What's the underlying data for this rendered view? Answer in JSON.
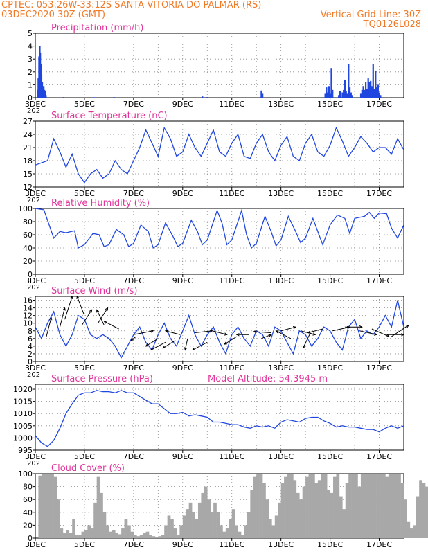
{
  "header": {
    "line1": "CPTEC:   053:26W-33:12S   SANTA VITORIA DO PALMAR (RS)",
    "line2_left": "03DEC2020 30Z (GMT)",
    "line2_right": "Vertical Grid Line: 30Z",
    "line3_right": "TQ0126L028"
  },
  "colors": {
    "header": "#f07a28",
    "title": "#e0339a",
    "line": "#2046e0",
    "cloud": "#a8a8a8",
    "axis": "#000000"
  },
  "chart_data": [
    {
      "type": "bar",
      "title": "Precipitation (mm/h)",
      "yticks": [
        0,
        1,
        2,
        3,
        4,
        5
      ],
      "ylim": [
        0,
        5
      ],
      "xticks": [
        "3DEC",
        "5DEC",
        "7DEC",
        "9DEC",
        "11DEC",
        "13DEC",
        "15DEC",
        "17DEC"
      ],
      "x_overflow_label": "202",
      "xlim": [
        0,
        15
      ],
      "values": [
        [
          0.1,
          0.6
        ],
        [
          0.12,
          1.5
        ],
        [
          0.15,
          3.2
        ],
        [
          0.18,
          4.0
        ],
        [
          0.2,
          3.5
        ],
        [
          0.23,
          2.6
        ],
        [
          0.25,
          1.8
        ],
        [
          0.28,
          1.2
        ],
        [
          0.31,
          0.8
        ],
        [
          0.34,
          0.9
        ],
        [
          0.37,
          0.6
        ],
        [
          0.4,
          0.5
        ],
        [
          0.43,
          0.2
        ],
        [
          1.15,
          0.05
        ],
        [
          2.4,
          0.04
        ],
        [
          3.2,
          0.05
        ],
        [
          6.8,
          0.1
        ],
        [
          7.0,
          0.05
        ],
        [
          9.2,
          0.55
        ],
        [
          9.25,
          0.3
        ],
        [
          11.8,
          0.3
        ],
        [
          11.85,
          0.8
        ],
        [
          11.9,
          0.4
        ],
        [
          11.95,
          0.9
        ],
        [
          12.0,
          0.3
        ],
        [
          12.05,
          2.3
        ],
        [
          12.1,
          0.6
        ],
        [
          12.35,
          0.2
        ],
        [
          12.4,
          0.5
        ],
        [
          12.5,
          0.4
        ],
        [
          12.55,
          0.6
        ],
        [
          12.6,
          1.4
        ],
        [
          12.65,
          0.5
        ],
        [
          12.7,
          0.3
        ],
        [
          12.75,
          2.6
        ],
        [
          12.8,
          0.8
        ],
        [
          12.85,
          0.4
        ],
        [
          12.9,
          0.2
        ],
        [
          13.25,
          0.3
        ],
        [
          13.3,
          0.6
        ],
        [
          13.35,
          0.9
        ],
        [
          13.4,
          0.6
        ],
        [
          13.45,
          1.2
        ],
        [
          13.5,
          0.7
        ],
        [
          13.55,
          1.5
        ],
        [
          13.6,
          1.2
        ],
        [
          13.65,
          1.3
        ],
        [
          13.7,
          0.9
        ],
        [
          13.75,
          2.6
        ],
        [
          13.8,
          0.7
        ],
        [
          13.85,
          2.1
        ],
        [
          13.9,
          0.8
        ],
        [
          13.95,
          1.0
        ],
        [
          14.0,
          0.4
        ],
        [
          14.05,
          0.2
        ]
      ]
    },
    {
      "type": "line",
      "title": "Surface Temperature (nC)",
      "yticks": [
        12,
        15,
        18,
        21,
        24,
        27
      ],
      "ylim": [
        12,
        27
      ],
      "xticks": [
        "3DEC",
        "5DEC",
        "7DEC",
        "9DEC",
        "11DEC",
        "13DEC",
        "15DEC",
        "17DEC"
      ],
      "x_overflow_label": "202",
      "xlim": [
        0,
        15
      ],
      "x": [
        0,
        0.5,
        0.75,
        1.0,
        1.25,
        1.5,
        1.75,
        2.0,
        2.25,
        2.5,
        2.75,
        3.0,
        3.25,
        3.5,
        3.75,
        4.0,
        4.25,
        4.5,
        4.75,
        5.0,
        5.25,
        5.5,
        5.75,
        6.0,
        6.25,
        6.5,
        6.75,
        7.0,
        7.25,
        7.5,
        7.75,
        8.0,
        8.25,
        8.5,
        8.75,
        9.0,
        9.25,
        9.5,
        9.75,
        10.0,
        10.25,
        10.5,
        10.75,
        11.0,
        11.25,
        11.5,
        11.75,
        12.0,
        12.25,
        12.5,
        12.75,
        13.0,
        13.25,
        13.5,
        13.75,
        14.0,
        14.25,
        14.5,
        14.75,
        15.0
      ],
      "y": [
        17.0,
        18.0,
        23.0,
        20.0,
        16.5,
        19.5,
        15.0,
        13.0,
        15.0,
        16.0,
        14.0,
        15.0,
        18.0,
        16.0,
        15.0,
        18.0,
        21.0,
        25.0,
        22.0,
        19.0,
        25.5,
        23.0,
        19.0,
        20.0,
        24.0,
        21.0,
        19.0,
        22.0,
        25.0,
        20.0,
        19.0,
        22.0,
        24.0,
        19.0,
        18.5,
        22.0,
        24.0,
        20.0,
        18.0,
        21.5,
        23.5,
        19.0,
        18.0,
        22.0,
        24.0,
        20.0,
        19.0,
        21.5,
        25.5,
        22.5,
        19.0,
        21.0,
        23.5,
        22.0,
        20.0,
        21.0,
        21.0,
        19.5,
        23.0,
        20.5
      ]
    },
    {
      "type": "line",
      "title": "Relative Humidity (%)",
      "yticks": [
        0,
        20,
        40,
        60,
        80,
        100
      ],
      "ylim": [
        0,
        100
      ],
      "xticks": [
        "3DEC",
        "5DEC",
        "7DEC",
        "9DEC",
        "11DEC",
        "13DEC",
        "15DEC",
        "17DEC"
      ],
      "x_overflow_label": "202",
      "xlim": [
        0,
        15
      ],
      "x": [
        0,
        0.35,
        0.75,
        1.0,
        1.25,
        1.6,
        1.75,
        2.0,
        2.35,
        2.6,
        2.8,
        3.0,
        3.3,
        3.6,
        3.8,
        4.0,
        4.3,
        4.6,
        4.8,
        5.0,
        5.3,
        5.6,
        5.8,
        6.0,
        6.35,
        6.6,
        6.8,
        7.0,
        7.4,
        7.6,
        7.8,
        8.0,
        8.4,
        8.6,
        8.8,
        9.0,
        9.35,
        9.6,
        9.8,
        10.0,
        10.3,
        10.6,
        10.8,
        11.0,
        11.3,
        11.55,
        11.7,
        12.0,
        12.3,
        12.6,
        12.8,
        13.0,
        13.4,
        13.6,
        13.8,
        14.0,
        14.3,
        14.5,
        14.75,
        15.0
      ],
      "y": [
        100,
        98,
        55,
        65,
        63,
        66,
        40,
        45,
        62,
        60,
        42,
        45,
        68,
        60,
        42,
        47,
        75,
        65,
        40,
        45,
        78,
        58,
        42,
        47,
        82,
        65,
        45,
        52,
        97,
        78,
        45,
        52,
        97,
        60,
        40,
        47,
        88,
        65,
        43,
        52,
        88,
        65,
        48,
        55,
        85,
        60,
        45,
        75,
        90,
        85,
        62,
        85,
        88,
        94,
        85,
        93,
        92,
        70,
        55,
        75
      ]
    },
    {
      "type": "line",
      "title": "Surface Wind (m/s)",
      "yticks": [
        0,
        2,
        4,
        6,
        8,
        10,
        12,
        14,
        16
      ],
      "ylim": [
        0,
        17
      ],
      "xticks": [
        "3DEC",
        "5DEC",
        "7DEC",
        "9DEC",
        "11DEC",
        "13DEC",
        "15DEC",
        "17DEC"
      ],
      "x_overflow_label": "202",
      "xlim": [
        0,
        15
      ],
      "x": [
        0,
        0.25,
        0.5,
        0.75,
        1.0,
        1.25,
        1.5,
        1.75,
        2.0,
        2.25,
        2.5,
        2.75,
        3.0,
        3.25,
        3.5,
        3.75,
        4.0,
        4.25,
        4.5,
        4.75,
        5.0,
        5.25,
        5.5,
        5.75,
        6.0,
        6.25,
        6.5,
        6.75,
        7.0,
        7.25,
        7.5,
        7.75,
        8.0,
        8.25,
        8.5,
        8.75,
        9.0,
        9.25,
        9.5,
        9.75,
        10.0,
        10.25,
        10.5,
        10.75,
        11.0,
        11.25,
        11.5,
        11.75,
        12.0,
        12.25,
        12.5,
        12.75,
        13.0,
        13.25,
        13.5,
        13.75,
        14.0,
        14.25,
        14.5,
        14.75,
        15.0
      ],
      "y": [
        9,
        6,
        10,
        13,
        7,
        4,
        7,
        12,
        11,
        7,
        6,
        7,
        6,
        4,
        1,
        4,
        7,
        9,
        5,
        3,
        7,
        10,
        6,
        4,
        8,
        12,
        7,
        4,
        7,
        9,
        5,
        2,
        7,
        9,
        6,
        4,
        8,
        7,
        4,
        9,
        8,
        5,
        2,
        8,
        7,
        4,
        6,
        9,
        8,
        5,
        3,
        9,
        11,
        6,
        8,
        7,
        9,
        12,
        9,
        16,
        9
      ],
      "arrows": [
        [
          0.45,
          6.5,
          0.2,
          5
        ],
        [
          1.0,
          9.0,
          0.2,
          5
        ],
        [
          1.2,
          11.0,
          0.3,
          6
        ],
        [
          1.9,
          9.5,
          0.4,
          4
        ],
        [
          2.0,
          12.0,
          -0.3,
          5
        ],
        [
          2.55,
          10.0,
          0.4,
          4
        ],
        [
          2.8,
          9.5,
          -0.3,
          4
        ],
        [
          3.4,
          8.5,
          -0.6,
          2
        ],
        [
          4.0,
          7.0,
          0.8,
          1
        ],
        [
          4.1,
          6.5,
          -0.2,
          -1
        ],
        [
          5.0,
          6.0,
          -0.5,
          -2
        ],
        [
          5.3,
          5.0,
          -0.6,
          -2
        ],
        [
          5.7,
          5.5,
          -0.5,
          -2
        ],
        [
          5.9,
          7.0,
          -0.6,
          1
        ],
        [
          6.2,
          6.0,
          -0.1,
          -3
        ],
        [
          6.5,
          7.5,
          0.7,
          0.5
        ],
        [
          7.0,
          5.0,
          -0.6,
          -2
        ],
        [
          7.2,
          8.0,
          0.6,
          -1
        ],
        [
          8.2,
          6.5,
          -0.5,
          -2
        ],
        [
          8.7,
          7.0,
          -0.5,
          0
        ],
        [
          9.2,
          6.0,
          0.4,
          1
        ],
        [
          9.6,
          7.5,
          -0.7,
          0.3
        ],
        [
          10.0,
          8.0,
          0.6,
          1
        ],
        [
          10.4,
          6.0,
          -0.6,
          2
        ],
        [
          10.8,
          8.0,
          0.6,
          -1
        ],
        [
          11.2,
          7.5,
          -0.3,
          -4
        ],
        [
          11.7,
          8.5,
          -0.6,
          -1
        ],
        [
          12.1,
          8.0,
          0.7,
          1
        ],
        [
          12.6,
          9.0,
          0.7,
          0
        ],
        [
          13.2,
          8.0,
          0.7,
          -1
        ],
        [
          13.7,
          8.5,
          0.7,
          -2
        ],
        [
          14.3,
          7.0,
          0.7,
          0
        ],
        [
          14.5,
          6.5,
          0.7,
          3
        ]
      ]
    },
    {
      "type": "line",
      "title": "Surface Pressure (hPa)",
      "annotation": "Model Altitude: 54.3945  m",
      "yticks": [
        995,
        1000,
        1005,
        1010,
        1015,
        1020
      ],
      "ylim": [
        995,
        1022
      ],
      "xticks": [
        "3DEC",
        "5DEC",
        "7DEC",
        "9DEC",
        "11DEC",
        "13DEC",
        "15DEC",
        "17DEC"
      ],
      "x_overflow_label": "202",
      "xlim": [
        0,
        15
      ],
      "x": [
        0,
        0.25,
        0.5,
        0.75,
        1.0,
        1.25,
        1.5,
        1.75,
        2.0,
        2.25,
        2.5,
        2.75,
        3.0,
        3.25,
        3.5,
        3.75,
        4.0,
        4.25,
        4.5,
        4.75,
        5.0,
        5.25,
        5.5,
        5.75,
        6.0,
        6.25,
        6.5,
        6.75,
        7.0,
        7.25,
        7.5,
        7.75,
        8.0,
        8.25,
        8.5,
        8.75,
        9.0,
        9.25,
        9.5,
        9.75,
        10.0,
        10.25,
        10.5,
        10.75,
        11.0,
        11.25,
        11.5,
        11.75,
        12.0,
        12.25,
        12.5,
        12.75,
        13.0,
        13.25,
        13.5,
        13.75,
        14.0,
        14.25,
        14.5,
        14.75,
        15.0
      ],
      "y": [
        1001,
        998,
        996.5,
        999,
        1004,
        1010,
        1014,
        1017.5,
        1018.5,
        1018.5,
        1019.5,
        1019,
        1019,
        1018.5,
        1019.5,
        1018.5,
        1018.5,
        1017,
        1015.5,
        1014,
        1014,
        1012,
        1010,
        1010,
        1010.5,
        1009,
        1009.5,
        1009,
        1008.5,
        1006.5,
        1006.5,
        1006,
        1005.5,
        1005.5,
        1004.5,
        1004,
        1005,
        1004.5,
        1005,
        1004,
        1006.5,
        1007.5,
        1007,
        1006.5,
        1008,
        1008.5,
        1008.5,
        1007,
        1006,
        1004.5,
        1005,
        1004.5,
        1004.5,
        1004,
        1003.5,
        1003.5,
        1002.5,
        1004,
        1005,
        1004,
        1005
      ]
    },
    {
      "type": "bar",
      "title": "Cloud Cover (%)",
      "yticks": [
        0,
        20,
        40,
        60,
        80,
        100
      ],
      "ylim": [
        0,
        100
      ],
      "xticks": [
        "3DEC",
        "5DEC",
        "7DEC",
        "9DEC",
        "11DEC",
        "13DEC",
        "15DEC",
        "17DEC"
      ],
      "xlim": [
        0,
        15
      ],
      "bin_width": 0.125,
      "values": [
        0,
        97,
        100,
        100,
        100,
        100,
        95,
        60,
        15,
        8,
        12,
        8,
        30,
        5,
        5,
        10,
        12,
        20,
        15,
        55,
        95,
        70,
        40,
        20,
        10,
        12,
        8,
        6,
        15,
        30,
        20,
        10,
        5,
        3,
        5,
        8,
        10,
        5,
        3,
        2,
        3,
        5,
        20,
        35,
        30,
        15,
        5,
        20,
        35,
        45,
        55,
        40,
        30,
        55,
        70,
        80,
        60,
        40,
        55,
        40,
        20,
        10,
        15,
        30,
        45,
        20,
        10,
        5,
        20,
        40,
        75,
        95,
        100,
        100,
        85,
        60,
        30,
        20,
        35,
        55,
        85,
        95,
        100,
        100,
        90,
        70,
        60,
        80,
        95,
        100,
        100,
        85,
        90,
        100,
        100,
        75,
        70,
        95,
        100,
        65,
        45,
        85,
        100,
        100,
        100,
        80,
        100,
        100,
        100,
        100,
        100,
        100,
        100,
        100,
        95,
        100,
        100,
        100,
        100,
        85,
        60,
        25,
        15,
        20,
        65,
        90,
        85,
        80
      ]
    }
  ]
}
